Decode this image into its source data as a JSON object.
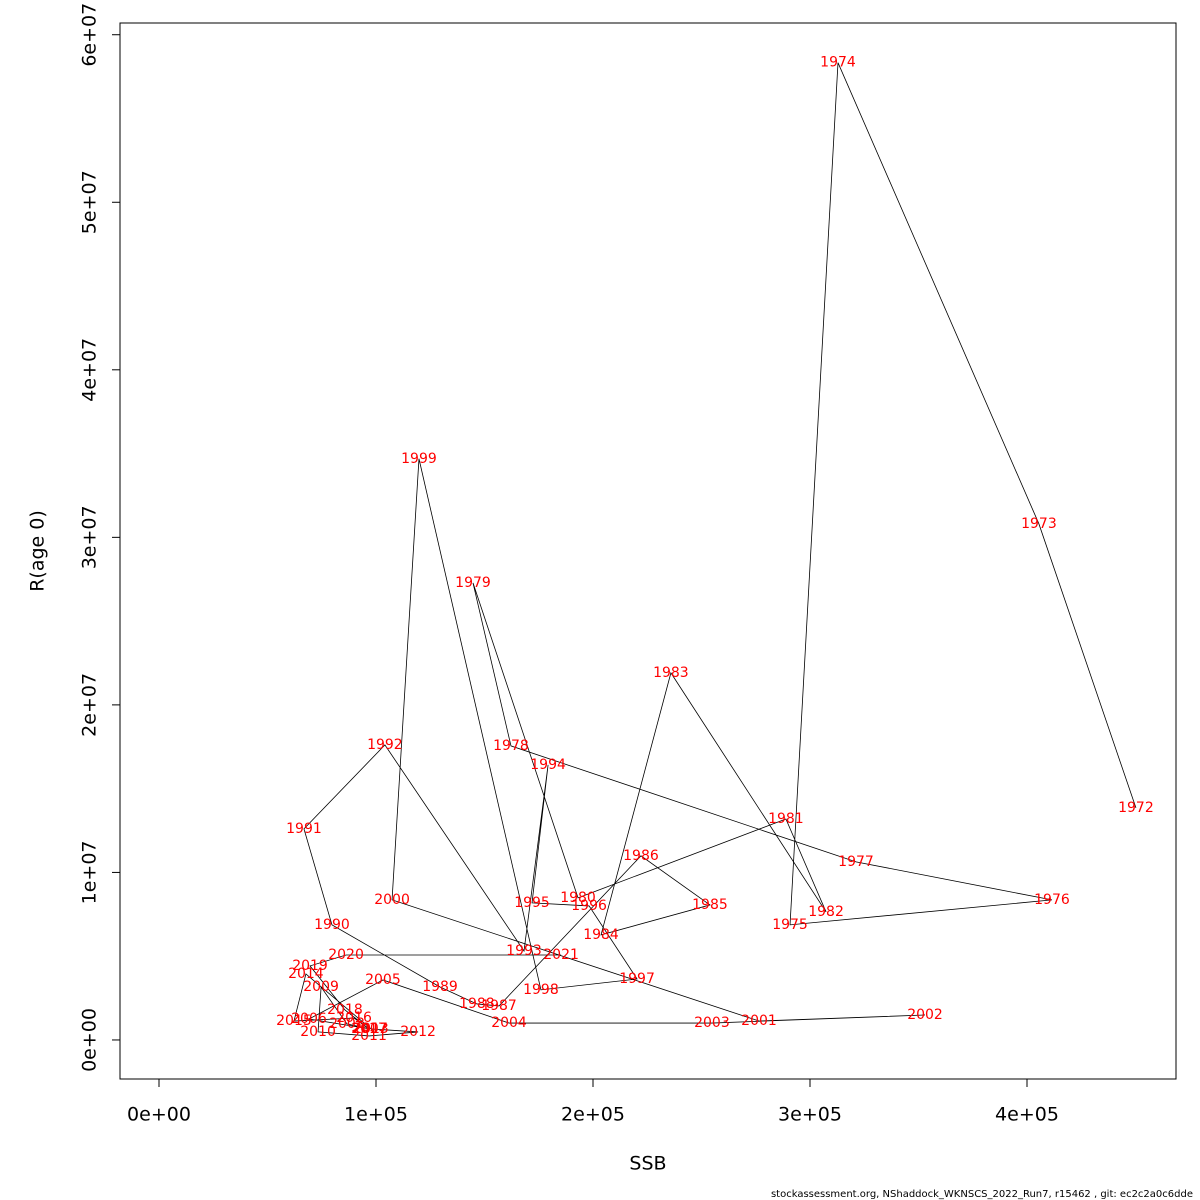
{
  "chart_data": {
    "type": "connected-scatter",
    "x_label": "SSB",
    "y_label": "R(age 0)",
    "footer": "stockassessment.org, NShaddock_WKNSCS_2022_Run7, r15462 , git: ec2c2a0c6dde",
    "point_labels": [
      "1972",
      "1973",
      "1974",
      "1975",
      "1976",
      "1977",
      "1978",
      "1979",
      "1980",
      "1981",
      "1982",
      "1983",
      "1984",
      "1985",
      "1986",
      "1987",
      "1988",
      "1989",
      "1990",
      "1991",
      "1992",
      "1993",
      "1994",
      "1995",
      "1996",
      "1997",
      "1998",
      "1999",
      "2000",
      "2001",
      "2002",
      "2003",
      "2004",
      "2005",
      "2006",
      "2007",
      "2008",
      "2009",
      "2010",
      "2011",
      "2012",
      "2013",
      "2014",
      "2015",
      "2016",
      "2017",
      "2018",
      "2019",
      "2020",
      "2021"
    ],
    "x": [
      450200,
      405500,
      312900,
      290800,
      411500,
      321200,
      162200,
      144700,
      193100,
      288900,
      307400,
      235900,
      203700,
      253900,
      222100,
      156700,
      146500,
      129500,
      79700,
      66800,
      104100,
      168200,
      179300,
      171900,
      198200,
      220300,
      176000,
      119800,
      107400,
      276500,
      353000,
      254800,
      161300,
      103200,
      69100,
      97200,
      86600,
      74700,
      73300,
      96800,
      119400,
      97700,
      67700,
      62200,
      89900,
      96800,
      85700,
      69600,
      86200,
      185300
    ],
    "series": [
      {
        "color": "#000000",
        "label_color": "#ff0000",
        "values": [
          13850000,
          30800000,
          58330000,
          6870000,
          8360000,
          10630000,
          17550000,
          27280000,
          8480000,
          13190000,
          7640000,
          21910000,
          6270000,
          8060000,
          10990000,
          2030000,
          2150000,
          3160000,
          6870000,
          12600000,
          17610000,
          5310000,
          16420000,
          8180000,
          8000000,
          3640000,
          2990000,
          34690000,
          8360000,
          1130000,
          1490000,
          1010000,
          1010000,
          3580000,
          1250000,
          660000,
          960000,
          3160000,
          480000,
          240000,
          480000,
          660000,
          3940000,
          1130000,
          1310000,
          660000,
          1790000,
          4420000,
          5070000,
          5070000
        ]
      }
    ],
    "xlim": [
      -17972,
      468664
    ],
    "ylim": [
      -2330000,
      60700000
    ],
    "xticks": [
      {
        "value": 0,
        "label": "0e+00"
      },
      {
        "value": 100000,
        "label": "1e+05"
      },
      {
        "value": 200000,
        "label": "2e+05"
      },
      {
        "value": 300000,
        "label": "3e+05"
      },
      {
        "value": 400000,
        "label": "4e+05"
      }
    ],
    "yticks": [
      {
        "value": 0,
        "label": "0e+00"
      },
      {
        "value": 10000000,
        "label": "1e+07"
      },
      {
        "value": 20000000,
        "label": "2e+07"
      },
      {
        "value": 30000000,
        "label": "3e+07"
      },
      {
        "value": 40000000,
        "label": "4e+07"
      },
      {
        "value": 50000000,
        "label": "5e+07"
      },
      {
        "value": 60000000,
        "label": "6e+07"
      }
    ]
  }
}
